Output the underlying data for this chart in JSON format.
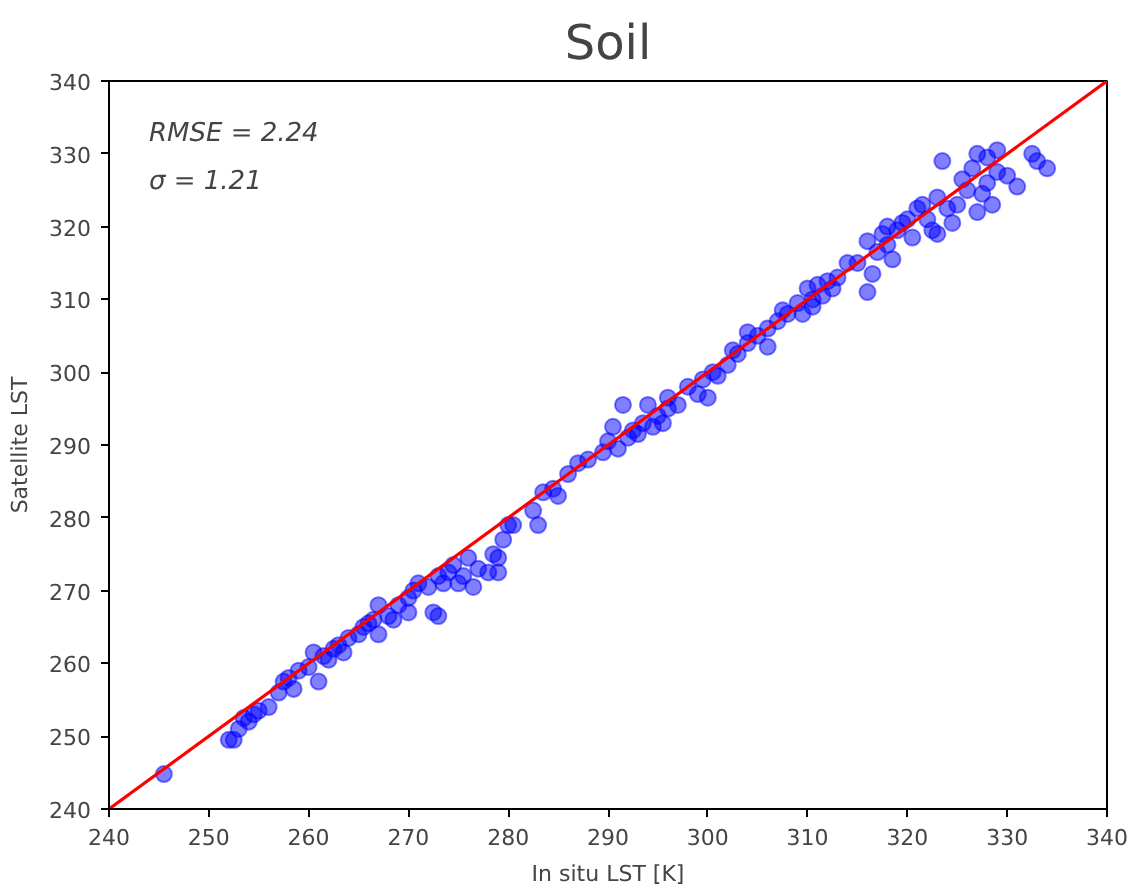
{
  "chart_data": {
    "type": "scatter",
    "title": "Soil",
    "xlabel": "In situ LST [K]",
    "ylabel": "Satellite LST",
    "annotations": [
      "RMSE = 2.24",
      "σ = 1.21"
    ],
    "xlim": [
      240,
      340
    ],
    "ylim": [
      240,
      340
    ],
    "xticks": [
      240,
      250,
      260,
      270,
      280,
      290,
      300,
      310,
      320,
      330,
      340
    ],
    "yticks": [
      240,
      250,
      260,
      270,
      280,
      290,
      300,
      310,
      320,
      330,
      340
    ],
    "grid": false,
    "series": [
      {
        "marker": "circle",
        "color": "#0000ff",
        "x": [
          245.5,
          252,
          252.5,
          253,
          253.5,
          254,
          254.5,
          255,
          256,
          257,
          257.5,
          258,
          258.5,
          259,
          260,
          260.5,
          261,
          261.5,
          262,
          262.5,
          263,
          263.5,
          264,
          265,
          265.5,
          266,
          266.5,
          267,
          267,
          268,
          268.5,
          269,
          270,
          270,
          270.5,
          271,
          272,
          272.5,
          273,
          273,
          273.5,
          274,
          274.5,
          275,
          275.5,
          276,
          276.5,
          277,
          278,
          278.5,
          279,
          279,
          279.5,
          280,
          280.5,
          282.5,
          283,
          283.5,
          284.5,
          285,
          286,
          287,
          288,
          289.5,
          290,
          290.5,
          291,
          291.5,
          292,
          292.5,
          293,
          293.5,
          294,
          294.5,
          295,
          295.5,
          296,
          297,
          298,
          299,
          299.5,
          300,
          300.5,
          301,
          302,
          302.5,
          303,
          304,
          305,
          306,
          306,
          307,
          307.5,
          308,
          309,
          309.5,
          310,
          310.5,
          311,
          311.5,
          312,
          312.5,
          313,
          314,
          315,
          316,
          316,
          316.5,
          317,
          317.5,
          318,
          318.5,
          319,
          319.5,
          320,
          320.5,
          321,
          321.5,
          322,
          322.5,
          323,
          323,
          323.5,
          324,
          324.5,
          325,
          325.5,
          326,
          326.5,
          327,
          327,
          327.5,
          328,
          328.5,
          329,
          329,
          330,
          331,
          332.5,
          333,
          334,
          328,
          318,
          310.5,
          304,
          296
        ],
        "values": [
          244.8,
          249.5,
          249.5,
          251,
          252.5,
          252,
          253,
          253.5,
          254,
          256,
          257.5,
          258,
          256.5,
          259,
          259.5,
          261.5,
          257.5,
          261,
          260.5,
          262,
          262.5,
          261.5,
          263.5,
          264,
          265,
          265.5,
          266,
          264,
          268,
          266.5,
          266,
          268,
          269,
          267,
          270,
          271,
          270.5,
          267,
          266.5,
          272,
          271,
          272.5,
          273.5,
          271,
          272,
          274.5,
          270.5,
          273,
          272.5,
          275,
          274.5,
          272.5,
          277,
          279,
          279,
          281,
          279,
          283.5,
          284,
          283,
          286,
          287.5,
          288,
          289,
          290.5,
          292.5,
          289.5,
          295.5,
          291,
          292,
          291.5,
          293,
          295.5,
          292.5,
          294,
          293,
          296.5,
          295.5,
          298,
          297,
          299,
          296.5,
          300,
          299.5,
          301,
          303,
          302.5,
          305.5,
          305,
          303.5,
          306,
          307,
          308.5,
          308,
          309.5,
          308,
          311.5,
          310,
          312,
          310.5,
          312.5,
          311.5,
          313,
          315,
          315,
          311,
          318,
          313.5,
          316.5,
          319,
          317.5,
          315.5,
          319.5,
          320.5,
          321,
          318.5,
          322.5,
          323,
          321,
          319.5,
          324,
          319,
          329,
          322.5,
          320.5,
          323,
          326.5,
          325,
          328,
          330,
          322,
          324.5,
          326,
          323,
          330.5,
          327.5,
          327,
          325.5,
          330,
          329,
          328,
          329.5,
          320,
          309,
          304,
          295
        ]
      },
      {
        "type": "line",
        "marker": "none",
        "color": "#ff0000",
        "x": [
          240,
          340
        ],
        "values": [
          240,
          340
        ]
      }
    ]
  }
}
